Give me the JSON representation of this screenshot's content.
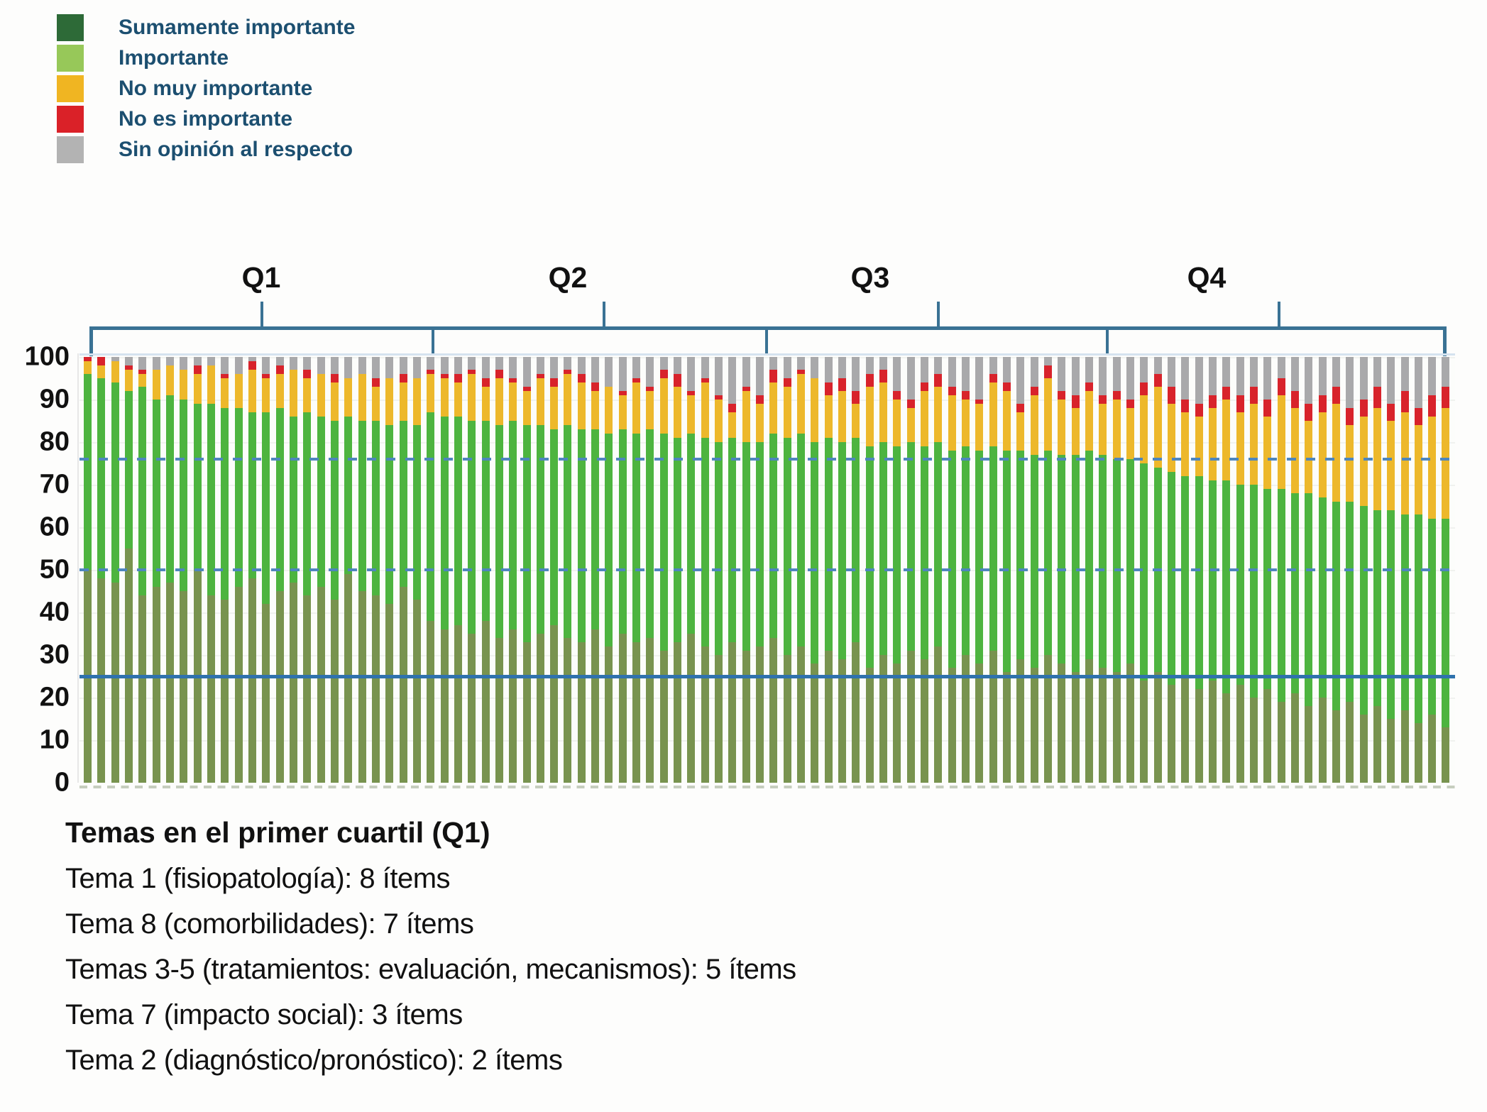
{
  "legend": {
    "items": [
      {
        "label": "Sumamente importante",
        "color": "#2d6a37"
      },
      {
        "label": "Importante",
        "color": "#97c859"
      },
      {
        "label": "No muy importante",
        "color": "#f0b522"
      },
      {
        "label": "No es importante",
        "color": "#da2128"
      },
      {
        "label": "Sin opinión al respecto",
        "color": "#b3b3b3"
      }
    ]
  },
  "quartiles": {
    "labels": [
      "Q1",
      "Q2",
      "Q3",
      "Q4"
    ]
  },
  "y_axis": {
    "tick_labels": [
      "0",
      "10",
      "20",
      "30",
      "40",
      "50",
      "60",
      "70",
      "80",
      "90",
      "100"
    ]
  },
  "footer": {
    "title": "Temas en el primer cuartil (Q1)",
    "lines": [
      "Tema 1 (fisiopatología): 8 ítems",
      "Tema 8 (comorbilidades): 7 ítems",
      "Temas 3-5 (tratamientos: evaluación, mecanismos): 5 ítems",
      "Tema 7 (impacto social): 3 ítems",
      "Tema 2 (diagnóstico/pronóstico): 2 ítems"
    ]
  },
  "colors": {
    "bar_sumamente": "#78934f",
    "bar_importante": "#4db43f",
    "bar_no_muy_importante": "#edb82b",
    "bar_no_es_importante": "#d8232b",
    "bar_sin_opinion": "#a9a9ab",
    "legend_text": "#1c4f70",
    "bracket_blue": "#3a7294",
    "dashed_line_blue": "#4e86bd",
    "solid_line_blue": "#2f72ad"
  },
  "chart_data": {
    "type": "bar",
    "stacked": true,
    "unit": "percent",
    "ylim": [
      0,
      100
    ],
    "y_ticks": [
      0,
      10,
      20,
      30,
      40,
      50,
      60,
      70,
      80,
      90,
      100
    ],
    "grid": "faint horizontal every 10",
    "legend_position": "top-left",
    "reference_lines": [
      {
        "value": 76,
        "style": "dashed"
      },
      {
        "value": 50,
        "style": "dashed"
      },
      {
        "value": 25,
        "style": "solid"
      }
    ],
    "series_order_bottom_to_top": [
      "Sumamente importante",
      "Importante",
      "No muy importante",
      "No es importante",
      "Sin opinión al respecto"
    ],
    "quartile_groups": [
      {
        "label": "Q1",
        "bar_start": 1,
        "bar_end": 25
      },
      {
        "label": "Q2",
        "bar_start": 26,
        "bar_end": 50
      },
      {
        "label": "Q3",
        "bar_start": 51,
        "bar_end": 75
      },
      {
        "label": "Q4",
        "bar_start": 76,
        "bar_end": 100
      }
    ],
    "bars_cumulative_tops_note": "per bar: [sumamente, +importante, +no muy importante, +no es importante]; 'sin opinión' fills to 100",
    "bars_cumulative_tops": [
      [
        50,
        96,
        99,
        100
      ],
      [
        48,
        95,
        98,
        100
      ],
      [
        47,
        94,
        99,
        99
      ],
      [
        55,
        92,
        97,
        98
      ],
      [
        44,
        93,
        96,
        97
      ],
      [
        46,
        90,
        97,
        97
      ],
      [
        47,
        91,
        98,
        98
      ],
      [
        45,
        90,
        97,
        97
      ],
      [
        50,
        89,
        96,
        98
      ],
      [
        44,
        89,
        98,
        98
      ],
      [
        43,
        88,
        95,
        96
      ],
      [
        46,
        88,
        96,
        96
      ],
      [
        48,
        87,
        97,
        99
      ],
      [
        42,
        87,
        95,
        96
      ],
      [
        45,
        88,
        96,
        98
      ],
      [
        47,
        86,
        97,
        97
      ],
      [
        44,
        87,
        95,
        97
      ],
      [
        46,
        86,
        96,
        96
      ],
      [
        43,
        85,
        94,
        96
      ],
      [
        49,
        86,
        95,
        95
      ],
      [
        45,
        85,
        96,
        96
      ],
      [
        44,
        85,
        93,
        95
      ],
      [
        42,
        84,
        95,
        95
      ],
      [
        46,
        85,
        94,
        96
      ],
      [
        43,
        84,
        95,
        95
      ],
      [
        38,
        87,
        96,
        97
      ],
      [
        36,
        86,
        95,
        96
      ],
      [
        37,
        86,
        94,
        96
      ],
      [
        35,
        85,
        96,
        97
      ],
      [
        38,
        85,
        93,
        95
      ],
      [
        34,
        84,
        95,
        97
      ],
      [
        36,
        85,
        94,
        95
      ],
      [
        33,
        84,
        92,
        93
      ],
      [
        35,
        84,
        95,
        96
      ],
      [
        37,
        83,
        93,
        95
      ],
      [
        34,
        84,
        96,
        97
      ],
      [
        33,
        83,
        94,
        96
      ],
      [
        36,
        83,
        92,
        94
      ],
      [
        32,
        82,
        93,
        93
      ],
      [
        35,
        83,
        91,
        92
      ],
      [
        33,
        82,
        94,
        95
      ],
      [
        34,
        83,
        92,
        93
      ],
      [
        31,
        82,
        95,
        97
      ],
      [
        33,
        81,
        93,
        96
      ],
      [
        35,
        82,
        91,
        92
      ],
      [
        32,
        81,
        94,
        95
      ],
      [
        30,
        80,
        90,
        91
      ],
      [
        33,
        81,
        87,
        89
      ],
      [
        31,
        80,
        92,
        93
      ],
      [
        32,
        80,
        89,
        91
      ],
      [
        34,
        82,
        94,
        97
      ],
      [
        30,
        81,
        93,
        95
      ],
      [
        32,
        82,
        96,
        97
      ],
      [
        28,
        80,
        95,
        95
      ],
      [
        31,
        81,
        91,
        94
      ],
      [
        29,
        80,
        92,
        95
      ],
      [
        33,
        81,
        89,
        92
      ],
      [
        27,
        79,
        93,
        96
      ],
      [
        30,
        80,
        94,
        97
      ],
      [
        28,
        79,
        90,
        92
      ],
      [
        31,
        80,
        88,
        90
      ],
      [
        29,
        79,
        92,
        94
      ],
      [
        32,
        80,
        93,
        96
      ],
      [
        27,
        78,
        91,
        93
      ],
      [
        30,
        79,
        90,
        92
      ],
      [
        28,
        78,
        89,
        90
      ],
      [
        31,
        79,
        94,
        96
      ],
      [
        26,
        78,
        92,
        94
      ],
      [
        29,
        78,
        87,
        89
      ],
      [
        27,
        77,
        91,
        93
      ],
      [
        30,
        78,
        95,
        98
      ],
      [
        28,
        77,
        90,
        92
      ],
      [
        26,
        77,
        88,
        91
      ],
      [
        29,
        78,
        92,
        94
      ],
      [
        27,
        77,
        89,
        91
      ],
      [
        26,
        76,
        90,
        92
      ],
      [
        28,
        76,
        88,
        90
      ],
      [
        24,
        75,
        91,
        94
      ],
      [
        26,
        74,
        93,
        96
      ],
      [
        23,
        73,
        89,
        93
      ],
      [
        25,
        72,
        87,
        90
      ],
      [
        22,
        72,
        86,
        89
      ],
      [
        24,
        71,
        88,
        91
      ],
      [
        21,
        71,
        90,
        93
      ],
      [
        23,
        70,
        87,
        91
      ],
      [
        20,
        70,
        89,
        93
      ],
      [
        22,
        69,
        86,
        90
      ],
      [
        19,
        69,
        91,
        95
      ],
      [
        21,
        68,
        88,
        92
      ],
      [
        18,
        68,
        85,
        89
      ],
      [
        20,
        67,
        87,
        91
      ],
      [
        17,
        66,
        89,
        93
      ],
      [
        19,
        66,
        84,
        88
      ],
      [
        16,
        65,
        86,
        90
      ],
      [
        18,
        64,
        88,
        93
      ],
      [
        15,
        64,
        85,
        89
      ],
      [
        17,
        63,
        87,
        92
      ],
      [
        14,
        63,
        84,
        88
      ],
      [
        16,
        62,
        86,
        91
      ],
      [
        13,
        62,
        88,
        93
      ]
    ]
  }
}
